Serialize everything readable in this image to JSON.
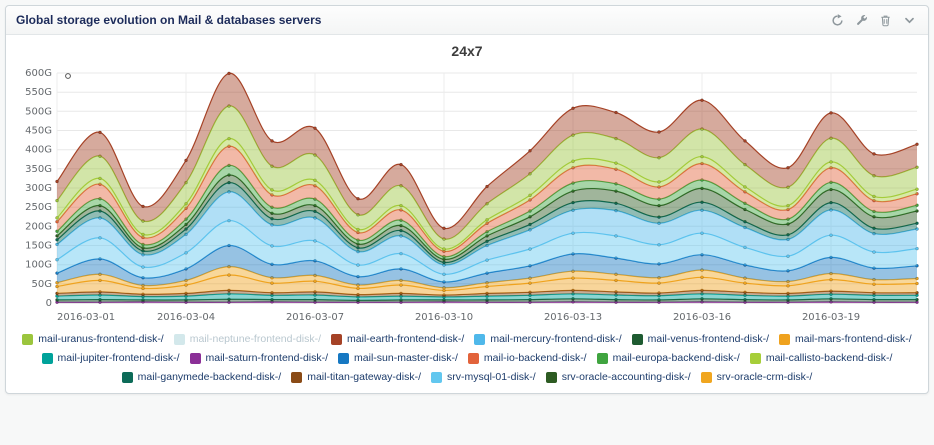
{
  "panel": {
    "title": "Global storage evolution on Mail & databases servers",
    "toolbar_icons": [
      "refresh-icon",
      "wrench-icon",
      "trash-icon",
      "collapse-icon"
    ]
  },
  "chart_data": {
    "type": "area",
    "stacked": true,
    "title": "24x7",
    "xlabel": "",
    "ylabel": "",
    "ylim": [
      0,
      600
    ],
    "y_tick_step": 50,
    "y_unit": "G",
    "grid": true,
    "legend_position": "bottom",
    "x": [
      "2016-03-01",
      "2016-03-02",
      "2016-03-03",
      "2016-03-04",
      "2016-03-05",
      "2016-03-06",
      "2016-03-07",
      "2016-03-08",
      "2016-03-09",
      "2016-03-10",
      "2016-03-11",
      "2016-03-12",
      "2016-03-13",
      "2016-03-14",
      "2016-03-15",
      "2016-03-16",
      "2016-03-17",
      "2016-03-18",
      "2016-03-19",
      "2016-03-20",
      "2016-03-21"
    ],
    "x_tick_every": 3,
    "x_tick_labels": [
      "2016-03-01",
      "2016-03-04",
      "2016-03-07",
      "2016-03-10",
      "2016-03-13",
      "2016-03-16",
      "2016-03-19"
    ],
    "stack_order": [
      "mail-neptune-frontend-disk-/",
      "mail-saturn-frontend-disk-/",
      "mail-venus-frontend-disk-/",
      "mail-jupiter-frontend-disk-/",
      "mail-titan-gateway-disk-/",
      "mail-mars-frontend-disk-/",
      "srv-oracle-crm-disk-/",
      "mail-sun-master-disk-/",
      "srv-mysql-01-disk-/",
      "mail-mercury-frontend-disk-/",
      "mail-ganymede-backend-disk-/",
      "srv-oracle-accounting-disk-/",
      "mail-europa-backend-disk-/",
      "mail-io-backend-disk-/",
      "mail-callisto-backend-disk-/",
      "mail-uranus-frontend-disk-/",
      "mail-earth-frontend-disk-/"
    ],
    "series": [
      {
        "name": "mail-uranus-frontend-disk-/",
        "color": "#9BC53D",
        "hidden": false,
        "values": [
          45,
          58,
          35,
          55,
          85,
          62,
          66,
          38,
          52,
          26,
          42,
          56,
          68,
          64,
          63,
          72,
          58,
          48,
          62,
          54,
          57
        ]
      },
      {
        "name": "mail-neptune-frontend-disk-/",
        "color": "#D3E8EB",
        "hidden": true,
        "values": [
          0,
          0,
          0,
          0,
          0,
          0,
          0,
          0,
          0,
          0,
          0,
          0,
          0,
          0,
          0,
          0,
          0,
          0,
          0,
          0,
          0
        ]
      },
      {
        "name": "mail-earth-frontend-disk-/",
        "color": "#A54226",
        "hidden": false,
        "values": [
          50,
          62,
          38,
          58,
          85,
          66,
          70,
          42,
          55,
          28,
          45,
          60,
          70,
          68,
          67,
          75,
          62,
          51,
          66,
          57,
          60
        ]
      },
      {
        "name": "mail-mercury-frontend-disk-/",
        "color": "#4FB8EA",
        "hidden": false,
        "values": [
          40,
          52,
          32,
          48,
          75,
          55,
          60,
          35,
          46,
          24,
          38,
          50,
          60,
          66,
          56,
          60,
          52,
          44,
          66,
          48,
          51
        ]
      },
      {
        "name": "mail-venus-frontend-disk-/",
        "color": "#1E5B31",
        "hidden": false,
        "values": [
          6,
          7,
          5,
          6,
          8,
          6,
          7,
          5,
          6,
          5,
          6,
          7,
          8,
          7,
          6,
          8,
          7,
          6,
          8,
          7,
          7
        ]
      },
      {
        "name": "mail-mars-frontend-disk-/",
        "color": "#EFA21E",
        "hidden": false,
        "values": [
          18,
          30,
          15,
          22,
          40,
          25,
          28,
          16,
          22,
          12,
          18,
          24,
          32,
          30,
          26,
          34,
          24,
          20,
          30,
          22,
          24
        ]
      },
      {
        "name": "mail-jupiter-frontend-disk-/",
        "color": "#00A29A",
        "hidden": false,
        "values": [
          10,
          12,
          9,
          10,
          14,
          11,
          12,
          9,
          10,
          8,
          10,
          11,
          13,
          12,
          11,
          13,
          11,
          10,
          12,
          11,
          11
        ]
      },
      {
        "name": "mail-saturn-frontend-disk-/",
        "color": "#8B2F97",
        "hidden": false,
        "values": [
          2,
          2,
          3,
          2,
          2,
          3,
          2,
          2,
          2,
          3,
          2,
          2,
          3,
          2,
          2,
          3,
          2,
          2,
          3,
          2,
          2
        ]
      },
      {
        "name": "mail-sun-master-disk-/",
        "color": "#1678C2",
        "hidden": false,
        "values": [
          25,
          40,
          20,
          30,
          55,
          35,
          38,
          22,
          30,
          15,
          25,
          32,
          45,
          42,
          36,
          40,
          34,
          28,
          42,
          30,
          33
        ]
      },
      {
        "name": "mail-io-backend-disk-/",
        "color": "#E2633B",
        "hidden": false,
        "values": [
          25,
          38,
          18,
          28,
          50,
          32,
          35,
          20,
          27,
          14,
          22,
          29,
          40,
          38,
          32,
          43,
          30,
          25,
          38,
          28,
          30
        ]
      },
      {
        "name": "mail-europa-backend-disk-/",
        "color": "#3FA43F",
        "hidden": false,
        "values": [
          12,
          18,
          9,
          14,
          25,
          16,
          17,
          10,
          14,
          7,
          11,
          15,
          21,
          19,
          17,
          22,
          16,
          13,
          19,
          14,
          15
        ]
      },
      {
        "name": "mail-callisto-backend-disk-/",
        "color": "#A6CE39",
        "hidden": false,
        "values": [
          10,
          15,
          8,
          12,
          20,
          13,
          14,
          8,
          11,
          6,
          9,
          12,
          17,
          16,
          13,
          18,
          13,
          10,
          15,
          11,
          12
        ]
      },
      {
        "name": "mail-ganymede-backend-disk-/",
        "color": "#0C6B58",
        "hidden": false,
        "values": [
          12,
          18,
          10,
          14,
          24,
          16,
          17,
          10,
          14,
          7,
          11,
          14,
          20,
          19,
          16,
          21,
          15,
          12,
          19,
          14,
          15
        ]
      },
      {
        "name": "mail-titan-gateway-disk-/",
        "color": "#8A4B16",
        "hidden": false,
        "values": [
          7,
          8,
          6,
          7,
          9,
          7,
          8,
          6,
          7,
          5,
          7,
          8,
          9,
          8,
          7,
          9,
          8,
          7,
          8,
          7,
          7
        ]
      },
      {
        "name": "srv-mysql-01-disk-/",
        "color": "#62C7EF",
        "hidden": false,
        "values": [
          35,
          55,
          28,
          42,
          65,
          48,
          52,
          30,
          40,
          20,
          34,
          44,
          54,
          58,
          50,
          56,
          46,
          38,
          58,
          42,
          45
        ]
      },
      {
        "name": "srv-oracle-accounting-disk-/",
        "color": "#2D5B22",
        "hidden": false,
        "values": [
          10,
          14,
          8,
          12,
          20,
          14,
          15,
          10,
          13,
          8,
          14,
          20,
          30,
          32,
          30,
          36,
          32,
          28,
          34,
          30,
          32
        ]
      },
      {
        "name": "srv-oracle-crm-disk-/",
        "color": "#F0A61F",
        "hidden": false,
        "values": [
          10,
          16,
          8,
          12,
          22,
          14,
          15,
          9,
          12,
          7,
          10,
          13,
          18,
          16,
          14,
          19,
          13,
          11,
          16,
          12,
          13
        ]
      }
    ]
  }
}
